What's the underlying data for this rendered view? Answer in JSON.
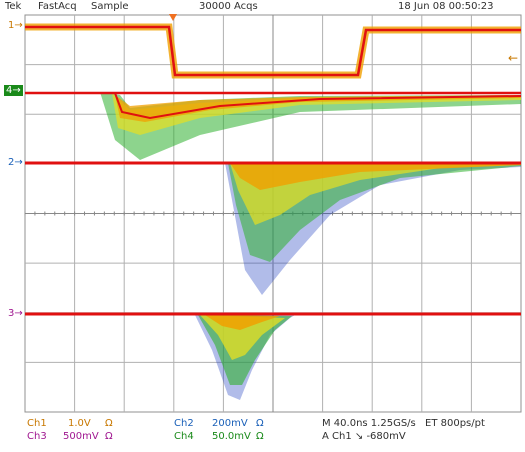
{
  "header": {
    "brand": "Tek",
    "mode": "FastAcq",
    "acq_mode": "Sample",
    "acq_count": "30000 Acqs",
    "timestamp": "18 Jun 08 00:50:23"
  },
  "channel_markers": [
    {
      "label": "1",
      "color": "#c87800"
    },
    {
      "label": "4",
      "color": "#1a8a1a"
    },
    {
      "label": "2",
      "color": "#1a60b8"
    },
    {
      "label": "3",
      "color": "#a01890"
    }
  ],
  "readout": {
    "ch1": {
      "name": "Ch1",
      "scale": "1.0V",
      "coupling": "Ω"
    },
    "ch3": {
      "name": "Ch3",
      "scale": "500mV",
      "coupling": "Ω"
    },
    "ch2": {
      "name": "Ch2",
      "scale": "200mV",
      "coupling": "Ω"
    },
    "ch4": {
      "name": "Ch4",
      "scale": "50.0mV",
      "coupling": "Ω"
    },
    "timebase": "M 40.0ns 1.25GS/s",
    "et": "ET 800ps/pt",
    "trigger": "A  Ch1  ↘  -680mV"
  },
  "colors": {
    "grid": "#909090",
    "persist_hot": "#e01010",
    "persist_warm": "#f0a000",
    "persist_mid": "#e8e020",
    "persist_cool": "#30b030",
    "persist_cold": "#2040c0"
  }
}
